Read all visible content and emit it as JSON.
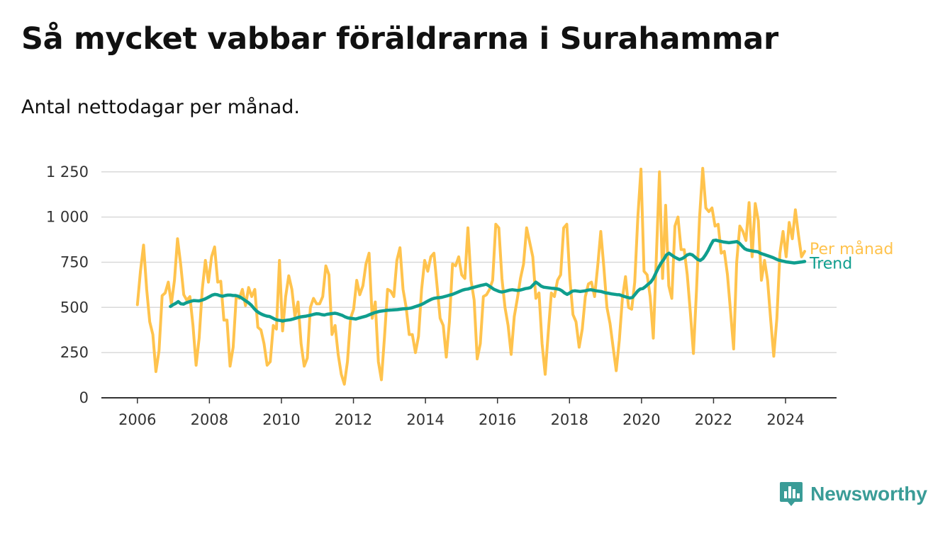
{
  "header": {
    "title": "Så mycket vabbar föräldrarna i Surahammar",
    "subtitle": "Antal nettodagar per månad."
  },
  "brand": {
    "name": "Newsworthy",
    "icon": "bar-chart-speech-bubble-icon"
  },
  "chart_data": {
    "type": "line",
    "x_type": "date",
    "xlim": [
      "2005-01",
      "2025-06"
    ],
    "ylim": [
      0,
      1300
    ],
    "y_ticks": [
      0,
      250,
      500,
      750,
      1000,
      1250
    ],
    "y_tick_labels": [
      "0",
      "250",
      "500",
      "750",
      "1 000",
      "1 250"
    ],
    "x_ticks": [
      "2006-01",
      "2008-01",
      "2010-01",
      "2012-01",
      "2014-01",
      "2016-01",
      "2018-01",
      "2020-01",
      "2022-01",
      "2024-01"
    ],
    "x_tick_labels": [
      "2006",
      "2008",
      "2010",
      "2012",
      "2014",
      "2016",
      "2018",
      "2020",
      "2022",
      "2024"
    ],
    "grid": true,
    "legend": "inline-end-labels",
    "series": [
      {
        "name": "Per månad",
        "color": "#ffc34d",
        "start": "2006-01",
        "values": [
          515,
          700,
          845,
          600,
          420,
          350,
          145,
          260,
          565,
          580,
          640,
          520,
          650,
          880,
          740,
          570,
          540,
          560,
          400,
          180,
          330,
          600,
          760,
          640,
          780,
          835,
          640,
          645,
          430,
          430,
          175,
          280,
          560,
          550,
          600,
          510,
          610,
          560,
          600,
          390,
          375,
          300,
          180,
          200,
          400,
          380,
          760,
          370,
          560,
          675,
          600,
          450,
          530,
          300,
          175,
          220,
          500,
          550,
          520,
          520,
          560,
          730,
          680,
          350,
          400,
          240,
          130,
          75,
          200,
          440,
          490,
          650,
          570,
          620,
          740,
          800,
          440,
          530,
          200,
          100,
          340,
          600,
          590,
          560,
          760,
          830,
          600,
          500,
          350,
          350,
          250,
          340,
          600,
          760,
          700,
          780,
          800,
          620,
          440,
          400,
          225,
          420,
          740,
          730,
          780,
          680,
          660,
          940,
          650,
          540,
          215,
          300,
          560,
          570,
          600,
          650,
          960,
          940,
          660,
          500,
          400,
          240,
          450,
          550,
          660,
          740,
          940,
          860,
          780,
          550,
          580,
          300,
          130,
          360,
          580,
          560,
          650,
          680,
          940,
          960,
          660,
          460,
          420,
          280,
          380,
          560,
          630,
          640,
          560,
          730,
          920,
          720,
          500,
          410,
          280,
          150,
          320,
          550,
          670,
          500,
          490,
          640,
          1000,
          1265,
          700,
          680,
          560,
          330,
          780,
          1250,
          660,
          1065,
          620,
          550,
          950,
          1000,
          820,
          820,
          680,
          470,
          245,
          600,
          1000,
          1270,
          1050,
          1030,
          1050,
          950,
          960,
          800,
          810,
          680,
          480,
          270,
          750,
          950,
          920,
          870,
          1080,
          780,
          1075,
          980,
          650,
          760,
          650,
          430,
          230,
          440,
          800,
          920,
          780,
          970,
          880,
          1040,
          900,
          780,
          810
        ]
      },
      {
        "name": "Trend",
        "color": "#0f9e8e",
        "start": "2006-12",
        "values": [
          505,
          515,
          522,
          532,
          520,
          518,
          525,
          530,
          535,
          538,
          537,
          536,
          540,
          545,
          552,
          560,
          568,
          572,
          570,
          565,
          562,
          566,
          568,
          568,
          566,
          566,
          562,
          555,
          545,
          535,
          525,
          512,
          495,
          480,
          470,
          462,
          456,
          452,
          450,
          443,
          435,
          430,
          428,
          425,
          428,
          430,
          432,
          436,
          440,
          445,
          448,
          450,
          452,
          455,
          458,
          462,
          465,
          464,
          460,
          458,
          462,
          464,
          466,
          468,
          465,
          460,
          455,
          447,
          442,
          440,
          438,
          436,
          440,
          444,
          448,
          452,
          458,
          464,
          470,
          474,
          478,
          480,
          482,
          484,
          485,
          486,
          487,
          488,
          490,
          492,
          493,
          494,
          496,
          500,
          505,
          510,
          515,
          522,
          530,
          538,
          545,
          550,
          553,
          554,
          556,
          560,
          564,
          568,
          572,
          578,
          584,
          590,
          596,
          600,
          602,
          606,
          610,
          614,
          618,
          622,
          625,
          628,
          620,
          610,
          600,
          594,
          588,
          585,
          588,
          592,
          596,
          598,
          596,
          594,
          596,
          600,
          604,
          606,
          610,
          625,
          640,
          630,
          618,
          612,
          610,
          608,
          606,
          605,
          603,
          600,
          592,
          580,
          572,
          580,
          590,
          592,
          590,
          588,
          590,
          592,
          596,
          598,
          595,
          592,
          590,
          588,
          584,
          580,
          578,
          575,
          573,
          571,
          570,
          565,
          560,
          556,
          552,
          555,
          572,
          590,
          602,
          604,
          615,
          628,
          640,
          660,
          690,
          720,
          745,
          765,
          790,
          800,
          790,
          780,
          772,
          765,
          770,
          778,
          790,
          795,
          790,
          778,
          765,
          760,
          770,
          790,
          815,
          845,
          870,
          872,
          868,
          865,
          862,
          860,
          858,
          860,
          862,
          864,
          855,
          840,
          825,
          818,
          815,
          812,
          810,
          808,
          800,
          795,
          790,
          785,
          780,
          775,
          768,
          762,
          758,
          755,
          752,
          750,
          748,
          746,
          748,
          750,
          752,
          754
        ]
      }
    ]
  }
}
